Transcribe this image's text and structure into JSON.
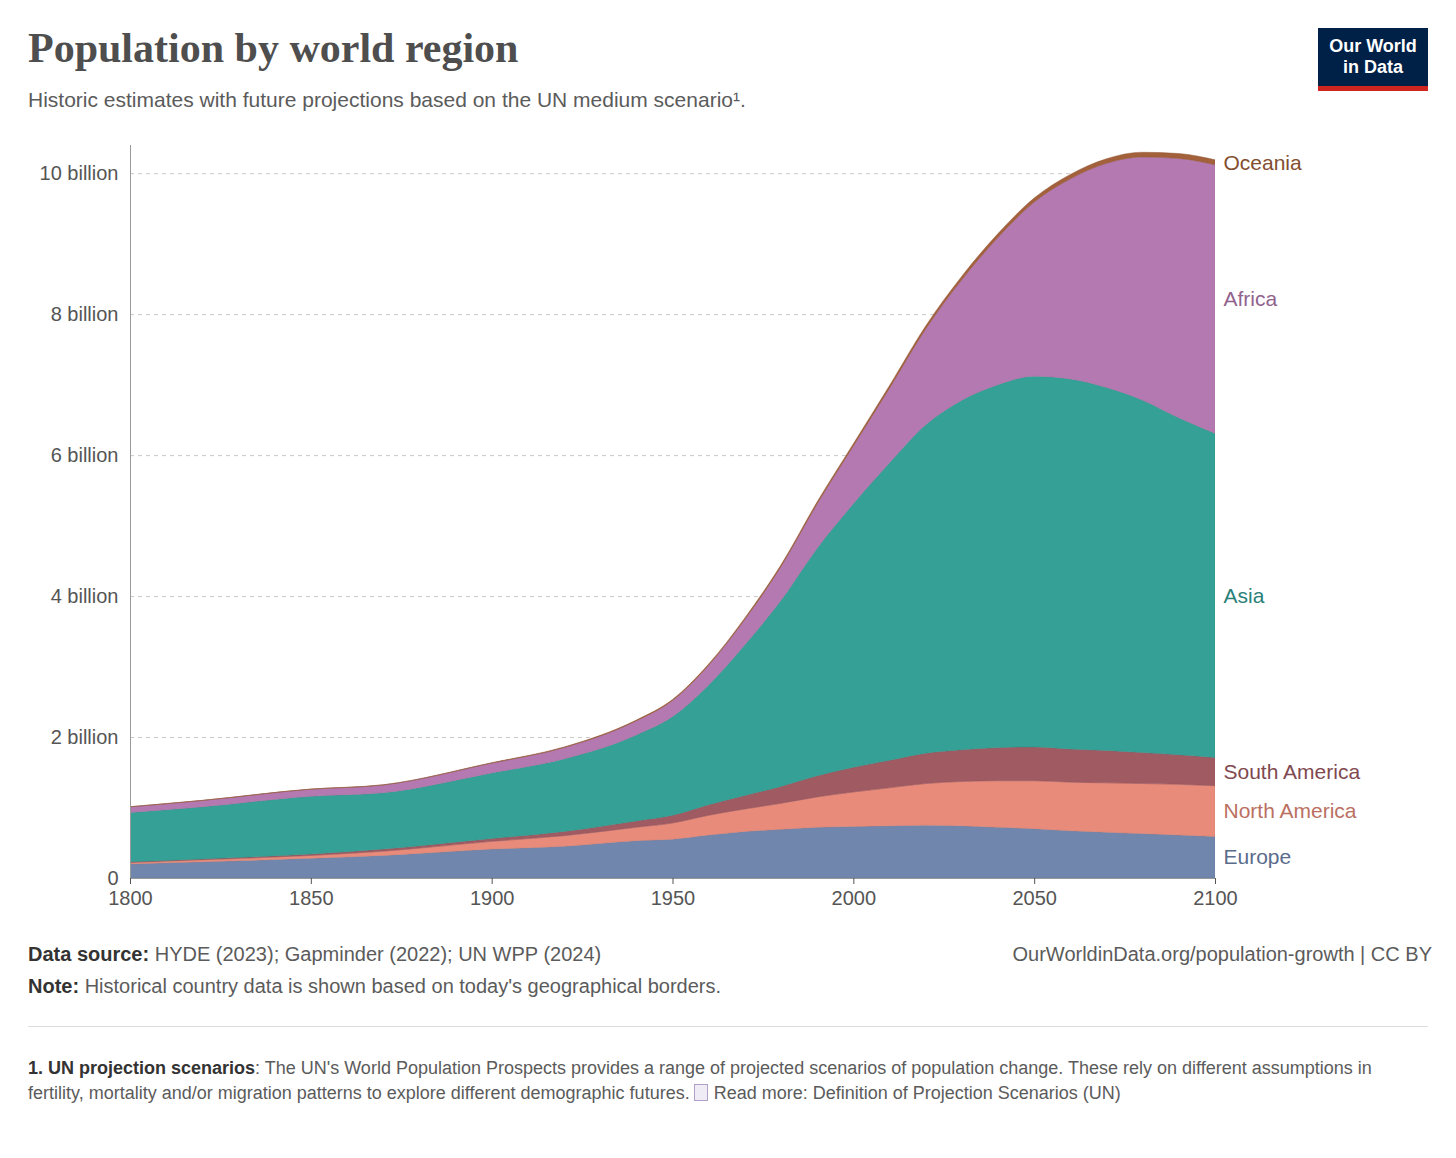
{
  "chart_data": {
    "type": "area",
    "stacked": true,
    "title": "Population by world region",
    "subtitle": "Historic estimates with future projections based on the UN medium scenario¹.",
    "logo": [
      "Our World",
      "in Data"
    ],
    "source": {
      "label": "Data source:",
      "text": "HYDE (2023); Gapminder (2022); UN WPP (2024)"
    },
    "url": "OurWorldinData.org/population-growth | CC BY",
    "note": {
      "label": "Note:",
      "text": "Historical country data is shown based on today's geographical borders."
    },
    "footnote": {
      "label": "1. UN projection scenarios",
      "text": ": The UN's World Population Prospects provides a range of projected scenarios of population change. These rely on different assumptions in fertility, mortality and/or migration patterns to explore different demographic futures.",
      "link": "Read more: Definition of Projection Scenarios (UN)"
    },
    "x": [
      1800,
      1820,
      1850,
      1870,
      1900,
      1920,
      1940,
      1950,
      1960,
      1970,
      1980,
      1990,
      2000,
      2010,
      2020,
      2030,
      2040,
      2050,
      2060,
      2070,
      2080,
      2090,
      2100
    ],
    "xlim": [
      1800,
      2100
    ],
    "xticks": [
      1800,
      1850,
      1900,
      1950,
      2000,
      2050,
      2100
    ],
    "ylim": [
      0,
      10400000000
    ],
    "yticks": [
      0,
      {
        "value": 2000000000,
        "label": "2 billion"
      },
      {
        "value": 4000000000,
        "label": "4 billion"
      },
      {
        "value": 6000000000,
        "label": "6 billion"
      },
      {
        "value": 8000000000,
        "label": "8 billion"
      },
      {
        "value": 10000000000,
        "label": "10 billion"
      }
    ],
    "grid": true,
    "series": [
      {
        "name": "Europe",
        "color": "#7086ad",
        "values": [
          200000000,
          230000000,
          280000000,
          320000000,
          410000000,
          450000000,
          530000000,
          550000000,
          610000000,
          660000000,
          690000000,
          720000000,
          730000000,
          740000000,
          750000000,
          740000000,
          720000000,
          700000000,
          670000000,
          650000000,
          630000000,
          610000000,
          590000000
        ]
      },
      {
        "name": "North America",
        "color": "#e88b7a",
        "values": [
          20000000,
          30000000,
          40000000,
          60000000,
          110000000,
          150000000,
          190000000,
          230000000,
          280000000,
          320000000,
          370000000,
          430000000,
          490000000,
          540000000,
          590000000,
          630000000,
          660000000,
          680000000,
          690000000,
          700000000,
          710000000,
          720000000,
          720000000
        ]
      },
      {
        "name": "South America",
        "color": "#a05a62",
        "values": [
          10000000,
          10000000,
          20000000,
          30000000,
          40000000,
          60000000,
          90000000,
          110000000,
          150000000,
          190000000,
          240000000,
          300000000,
          350000000,
          390000000,
          430000000,
          450000000,
          470000000,
          480000000,
          470000000,
          460000000,
          440000000,
          420000000,
          400000000
        ]
      },
      {
        "name": "Asia",
        "color": "#35a096",
        "values": [
          700000000,
          740000000,
          820000000,
          800000000,
          930000000,
          1030000000,
          1220000000,
          1400000000,
          1700000000,
          2140000000,
          2640000000,
          3230000000,
          3740000000,
          4220000000,
          4660000000,
          4960000000,
          5150000000,
          5260000000,
          5250000000,
          5150000000,
          5000000000,
          4780000000,
          4600000000
        ]
      },
      {
        "name": "Africa",
        "color": "#b479b0",
        "values": [
          80000000,
          90000000,
          100000000,
          110000000,
          140000000,
          160000000,
          200000000,
          230000000,
          280000000,
          360000000,
          480000000,
          630000000,
          820000000,
          1060000000,
          1360000000,
          1710000000,
          2090000000,
          2470000000,
          2840000000,
          3180000000,
          3450000000,
          3680000000,
          3810000000
        ]
      },
      {
        "name": "Oceania",
        "color": "#a2603b",
        "values": [
          2000000,
          2000000,
          2000000,
          3000000,
          6000000,
          9000000,
          11000000,
          13000000,
          16000000,
          20000000,
          23000000,
          27000000,
          31000000,
          37000000,
          43000000,
          49000000,
          54000000,
          58000000,
          62000000,
          65000000,
          67000000,
          69000000,
          70000000
        ]
      }
    ]
  }
}
